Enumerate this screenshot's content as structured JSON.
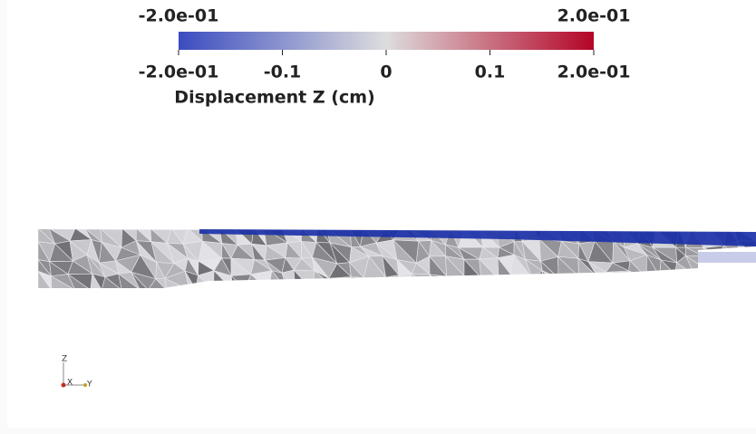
{
  "colorbar": {
    "title": "Displacement Z (cm)",
    "range_labels": [
      {
        "value": -0.2,
        "label": "-2.0e-01"
      },
      {
        "value": 0.2,
        "label": "2.0e-01"
      }
    ],
    "ticks": [
      {
        "value": -0.2,
        "label": "-2.0e-01"
      },
      -0.1,
      0,
      0.1,
      {
        "value": 0.2,
        "label": "2.0e-01"
      }
    ],
    "colors": [
      "#3b4cc0",
      "#dddddd",
      "#b40426"
    ]
  },
  "axes_triad": {
    "labels": [
      "Z",
      "X",
      "Y"
    ]
  }
}
